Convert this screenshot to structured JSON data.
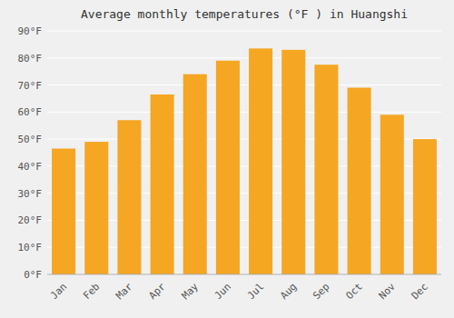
{
  "chart_data": {
    "type": "bar",
    "title": "Average monthly temperatures (°F ) in Huangshi",
    "categories": [
      "Jan",
      "Feb",
      "Mar",
      "Apr",
      "May",
      "Jun",
      "Jul",
      "Aug",
      "Sep",
      "Oct",
      "Nov",
      "Dec"
    ],
    "values": [
      46.5,
      49,
      57,
      66.5,
      74,
      79,
      83.5,
      83,
      77.5,
      69,
      59,
      50
    ],
    "color": "#F5A623",
    "ylim": [
      0,
      90
    ],
    "yticks": [
      {
        "value": 0,
        "label": "0°F"
      },
      {
        "value": 10,
        "label": "10°F"
      },
      {
        "value": 20,
        "label": "20°F"
      },
      {
        "value": 30,
        "label": "30°F"
      },
      {
        "value": 40,
        "label": "40°F"
      },
      {
        "value": 50,
        "label": "50°F"
      },
      {
        "value": 60,
        "label": "60°F"
      },
      {
        "value": 70,
        "label": "70°F"
      },
      {
        "value": 80,
        "label": "80°F"
      },
      {
        "value": 90,
        "label": "90°F"
      }
    ],
    "grid": true
  }
}
